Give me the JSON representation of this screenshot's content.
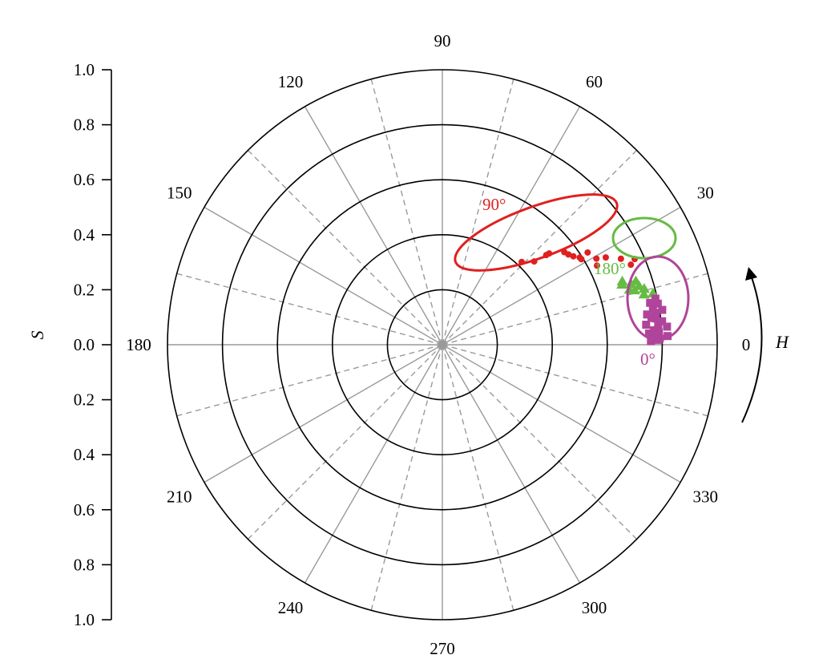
{
  "chart_data": {
    "type": "scatter",
    "coordinate_system": "polar",
    "title": "",
    "radial_axis": {
      "label": "S",
      "range": [
        0,
        1.0
      ],
      "tick_labels_upper": [
        "1.0",
        "0.8",
        "0.6",
        "0.4",
        "0.2",
        "0.0"
      ],
      "tick_labels_lower": [
        "0.2",
        "0.4",
        "0.6",
        "0.8",
        "1.0"
      ],
      "circles": [
        0.2,
        0.4,
        0.6,
        0.8,
        1.0
      ]
    },
    "angular_axis": {
      "label": "H",
      "direction": "counterclockwise",
      "unit": "degrees",
      "tick_labels": [
        {
          "angle": 0,
          "text": "0"
        },
        {
          "angle": 30,
          "text": "30"
        },
        {
          "angle": 60,
          "text": "60"
        },
        {
          "angle": 90,
          "text": "90"
        },
        {
          "angle": 120,
          "text": "120"
        },
        {
          "angle": 150,
          "text": "150"
        },
        {
          "angle": 180,
          "text": "180"
        },
        {
          "angle": 210,
          "text": "210"
        },
        {
          "angle": 240,
          "text": "240"
        },
        {
          "angle": 270,
          "text": "270"
        },
        {
          "angle": 300,
          "text": "300"
        },
        {
          "angle": 330,
          "text": "330"
        }
      ],
      "solid_spokes_every": 30,
      "dashed_spokes_offset": 15
    },
    "series": [
      {
        "name": "90°",
        "color": "#e02020",
        "marker": "circle",
        "points": [
          {
            "h": 46.2,
            "s": 0.417
          },
          {
            "h": 42.2,
            "s": 0.451
          },
          {
            "h": 40.8,
            "s": 0.499
          },
          {
            "h": 40.5,
            "s": 0.511
          },
          {
            "h": 37.2,
            "s": 0.557
          },
          {
            "h": 35.6,
            "s": 0.564
          },
          {
            "h": 34.0,
            "s": 0.575
          },
          {
            "h": 32.4,
            "s": 0.592
          },
          {
            "h": 29.2,
            "s": 0.642
          },
          {
            "h": 28.1,
            "s": 0.674
          },
          {
            "h": 25.7,
            "s": 0.721
          },
          {
            "h": 24.0,
            "s": 0.766
          },
          {
            "h": 31.6,
            "s": 0.594
          },
          {
            "h": 27.1,
            "s": 0.632
          },
          {
            "h": 32.4,
            "s": 0.626
          },
          {
            "h": 23.0,
            "s": 0.745
          }
        ]
      },
      {
        "name": "180°",
        "color": "#66bb44",
        "marker": "triangle",
        "points": [
          {
            "h": 19.4,
            "s": 0.694
          },
          {
            "h": 17.9,
            "s": 0.721
          },
          {
            "h": 16.6,
            "s": 0.747
          },
          {
            "h": 16.4,
            "s": 0.71
          },
          {
            "h": 15.8,
            "s": 0.727
          },
          {
            "h": 15.5,
            "s": 0.762
          },
          {
            "h": 13.7,
            "s": 0.789
          },
          {
            "h": 11.0,
            "s": 0.787
          },
          {
            "h": 18.2,
            "s": 0.741
          },
          {
            "h": 18.5,
            "s": 0.689
          },
          {
            "h": 14.0,
            "s": 0.756
          }
        ]
      },
      {
        "name": "0°",
        "color": "#b0449a",
        "marker": "square",
        "points": [
          {
            "h": 1.3,
            "s": 0.786
          },
          {
            "h": 2.5,
            "s": 0.789
          },
          {
            "h": 4.0,
            "s": 0.786
          },
          {
            "h": 5.5,
            "s": 0.789
          },
          {
            "h": 7.0,
            "s": 0.783
          },
          {
            "h": 8.5,
            "s": 0.783
          },
          {
            "h": 9.6,
            "s": 0.777
          },
          {
            "h": 10.8,
            "s": 0.798
          },
          {
            "h": 12.2,
            "s": 0.793
          },
          {
            "h": 1.0,
            "s": 0.759
          },
          {
            "h": 2.5,
            "s": 0.771
          },
          {
            "h": 3.9,
            "s": 0.771
          },
          {
            "h": 5.6,
            "s": 0.745
          },
          {
            "h": 6.1,
            "s": 0.804
          },
          {
            "h": 8.4,
            "s": 0.753
          },
          {
            "h": 2.2,
            "s": 0.82
          },
          {
            "h": 4.6,
            "s": 0.82
          },
          {
            "h": 1.6,
            "s": 0.791
          },
          {
            "h": 9.0,
            "s": 0.81
          },
          {
            "h": 11.4,
            "s": 0.771
          },
          {
            "h": 3.1,
            "s": 0.753
          },
          {
            "h": 7.3,
            "s": 0.767
          }
        ]
      }
    ],
    "ellipses": [
      {
        "label": "90°",
        "color": "#e02020"
      },
      {
        "label": "180°",
        "color": "#66bb44"
      },
      {
        "label": "0°",
        "color": "#b0449a"
      }
    ]
  }
}
